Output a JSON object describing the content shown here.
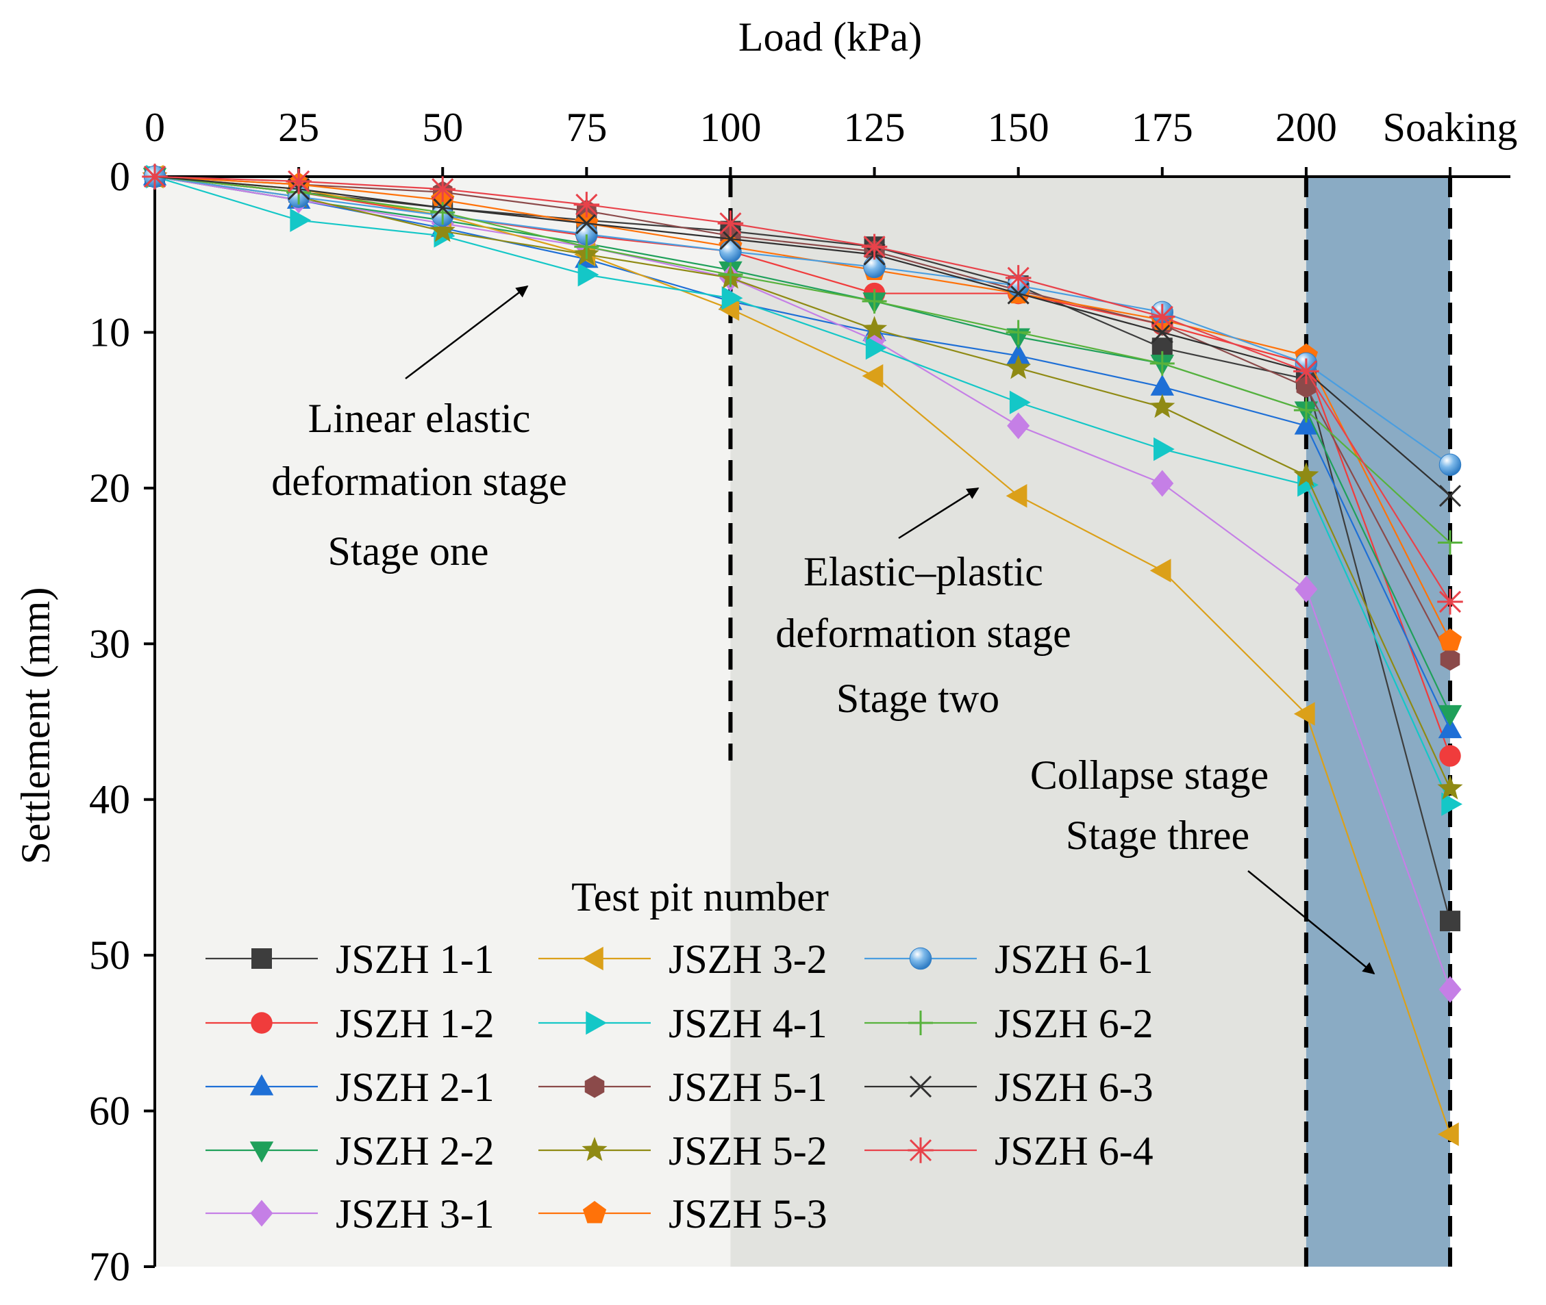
{
  "chart_data": {
    "type": "line",
    "xlabel": "Load (kPa)",
    "ylabel": "Settlement (mm)",
    "categories": [
      "0",
      "25",
      "50",
      "75",
      "100",
      "125",
      "150",
      "175",
      "200",
      "Soaking"
    ],
    "x": [
      0,
      25,
      50,
      75,
      100,
      125,
      150,
      175,
      200,
      225
    ],
    "ylim": [
      0,
      70
    ],
    "y_ticks": [
      "0",
      "10",
      "20",
      "30",
      "40",
      "50",
      "60",
      "70"
    ],
    "y_tick_values": [
      0,
      10,
      20,
      30,
      40,
      50,
      60,
      70
    ],
    "y_inverted": true,
    "x_axis_position": "top",
    "stage_boundaries": [
      100,
      200,
      225
    ],
    "colors": {
      "stage_one_bg": "#f3f3f1",
      "stage_two_bg": "#e2e3df",
      "stage_three_bg": "#8aabc4"
    },
    "annotations": {
      "stage_one": [
        "Linear elastic",
        "deformation stage",
        "Stage one"
      ],
      "stage_two": [
        "Elastic–plastic",
        "deformation stage",
        "Stage two"
      ],
      "stage_three": [
        "Collapse stage",
        "Stage three"
      ]
    },
    "legend_title": "Test pit number",
    "series": [
      {
        "name": "JSZH 1-1",
        "marker": "square",
        "color": "#3d3d3d",
        "values": [
          0,
          1.0,
          2.0,
          2.8,
          3.5,
          4.5,
          7.0,
          11.0,
          13.0,
          47.8
        ]
      },
      {
        "name": "JSZH 1-2",
        "marker": "circle",
        "color": "#f03c3c",
        "values": [
          0,
          1.0,
          2.5,
          3.8,
          4.8,
          7.5,
          7.5,
          9.5,
          12.0,
          37.2
        ]
      },
      {
        "name": "JSZH 2-1",
        "marker": "triangle-up",
        "color": "#1e6fd6",
        "values": [
          0,
          1.5,
          3.3,
          5.3,
          8.0,
          10.0,
          11.5,
          13.5,
          16.0,
          35.5
        ]
      },
      {
        "name": "JSZH 2-2",
        "marker": "triangle-down",
        "color": "#1fa05a",
        "values": [
          0,
          1.5,
          2.8,
          4.3,
          6.0,
          8.0,
          10.3,
          12.0,
          15.0,
          34.5
        ]
      },
      {
        "name": "JSZH 3-1",
        "marker": "diamond",
        "color": "#c57fe6",
        "values": [
          0,
          1.5,
          3.0,
          4.5,
          6.5,
          10.5,
          16.0,
          19.7,
          26.5,
          52.2
        ]
      },
      {
        "name": "JSZH 3-2",
        "marker": "triangle-left",
        "color": "#dba019",
        "values": [
          0,
          0.8,
          2.5,
          5.0,
          8.5,
          12.8,
          20.5,
          25.3,
          34.5,
          61.5
        ]
      },
      {
        "name": "JSZH 4-1",
        "marker": "triangle-right",
        "color": "#14c7c7",
        "values": [
          0,
          2.8,
          3.8,
          6.3,
          7.8,
          11.0,
          14.5,
          17.5,
          19.8,
          40.3
        ]
      },
      {
        "name": "JSZH 5-1",
        "marker": "hexagon",
        "color": "#8b4a4a",
        "values": [
          0,
          0.5,
          1.0,
          2.2,
          3.8,
          4.8,
          7.3,
          9.5,
          13.5,
          31.0
        ]
      },
      {
        "name": "JSZH 5-2",
        "marker": "star",
        "color": "#8f8a14",
        "values": [
          0,
          1.3,
          3.5,
          5.0,
          6.5,
          9.8,
          12.3,
          14.8,
          19.2,
          39.3
        ]
      },
      {
        "name": "JSZH 5-3",
        "marker": "pentagon",
        "color": "#ff7209",
        "values": [
          0,
          0.5,
          1.5,
          3.0,
          4.5,
          6.0,
          7.5,
          9.2,
          11.5,
          29.8
        ]
      },
      {
        "name": "JSZH 6-1",
        "marker": "sphere",
        "color": "#4a9ee0",
        "values": [
          0,
          1.3,
          2.5,
          3.7,
          4.8,
          5.8,
          7.0,
          8.7,
          12.0,
          18.5
        ]
      },
      {
        "name": "JSZH 6-2",
        "marker": "plus",
        "color": "#57b23c",
        "values": [
          0,
          1.0,
          2.3,
          4.5,
          6.3,
          8.0,
          10.0,
          12.0,
          15.0,
          23.5
        ]
      },
      {
        "name": "JSZH 6-3",
        "marker": "x",
        "color": "#303030",
        "values": [
          0,
          0.8,
          2.0,
          3.0,
          4.0,
          5.0,
          7.5,
          10.0,
          12.5,
          20.5
        ]
      },
      {
        "name": "JSZH 6-4",
        "marker": "asterisk",
        "color": "#e8424a",
        "values": [
          0,
          0.3,
          0.8,
          1.8,
          3.0,
          4.5,
          6.5,
          9.0,
          12.5,
          27.3
        ]
      }
    ]
  }
}
